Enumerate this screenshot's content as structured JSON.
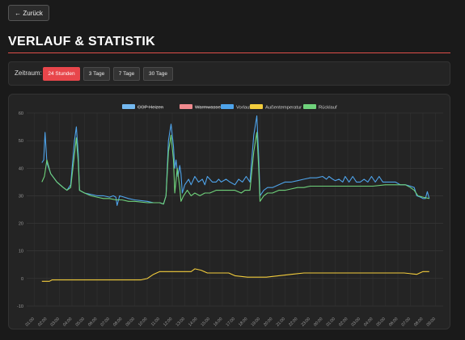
{
  "nav": {
    "back_label": "← Zurück"
  },
  "page": {
    "title": "VERLAUF & STATISTIK"
  },
  "range": {
    "label": "Zeitraum:",
    "options": [
      "24 Stunden",
      "3 Tage",
      "7 Tage",
      "30 Tage"
    ],
    "selected": "24 Stunden"
  },
  "colors": {
    "accent": "#e8464b",
    "cop_heizen": "#74b9f0",
    "warmwasser": "#f08a8e",
    "vorlauf": "#4ea3ea",
    "aussentemperatur": "#f3cd3c",
    "ruecklauf": "#6fd27b"
  },
  "chart_data": {
    "type": "line",
    "title": "",
    "xlabel": "",
    "ylabel": "",
    "ylim": [
      -10,
      60
    ],
    "yticks": [
      -10,
      0,
      10,
      20,
      30,
      40,
      50,
      60
    ],
    "grid": true,
    "legend_position": "top-center",
    "x_tick_labels": [
      "01:00",
      "02:00",
      "03:00",
      "04:00",
      "05:00",
      "06:00",
      "07:00",
      "08:00",
      "09:00",
      "10:00",
      "11:00",
      "12:00",
      "13:00",
      "14:00",
      "15:00",
      "16:00",
      "17:00",
      "18:00",
      "19:00",
      "20:00",
      "21:00",
      "22:00",
      "23:00",
      "00:00",
      "01:00",
      "02:00",
      "03:00",
      "04:00",
      "05:00",
      "06:00",
      "07:00",
      "08:00",
      "09:00"
    ],
    "series": [
      {
        "name": "COP Heizen",
        "hidden": true,
        "values": []
      },
      {
        "name": "Warmwasser",
        "hidden": true,
        "values": []
      },
      {
        "name": "Vorlauf",
        "hidden": false,
        "values": [
          [
            0.6,
            42
          ],
          [
            0.75,
            43
          ],
          [
            0.85,
            53
          ],
          [
            1.0,
            42
          ],
          [
            1.3,
            38
          ],
          [
            1.8,
            35
          ],
          [
            2.3,
            33
          ],
          [
            2.6,
            32
          ],
          [
            2.9,
            34
          ],
          [
            3.2,
            50
          ],
          [
            3.35,
            55
          ],
          [
            3.5,
            45
          ],
          [
            3.6,
            32
          ],
          [
            4.0,
            31
          ],
          [
            4.5,
            30.5
          ],
          [
            5.0,
            30
          ],
          [
            5.5,
            30
          ],
          [
            6.0,
            29.5
          ],
          [
            6.3,
            30
          ],
          [
            6.5,
            29.5
          ],
          [
            6.6,
            26.5
          ],
          [
            6.8,
            30
          ],
          [
            7.5,
            29
          ],
          [
            8.0,
            28.5
          ],
          [
            9.0,
            28
          ],
          [
            9.5,
            27.5
          ],
          [
            10.0,
            27.5
          ],
          [
            10.3,
            27
          ],
          [
            10.5,
            30
          ],
          [
            10.7,
            50
          ],
          [
            10.9,
            56
          ],
          [
            11.1,
            48
          ],
          [
            11.2,
            40
          ],
          [
            11.3,
            43
          ],
          [
            11.45,
            37
          ],
          [
            11.6,
            41
          ],
          [
            11.7,
            38
          ],
          [
            11.8,
            31
          ],
          [
            12.0,
            34
          ],
          [
            12.3,
            36
          ],
          [
            12.5,
            34
          ],
          [
            12.8,
            37
          ],
          [
            13.1,
            35
          ],
          [
            13.4,
            36
          ],
          [
            13.6,
            34
          ],
          [
            13.8,
            37
          ],
          [
            14.2,
            35
          ],
          [
            14.5,
            35
          ],
          [
            14.7,
            36
          ],
          [
            14.9,
            35
          ],
          [
            15.3,
            36
          ],
          [
            15.6,
            35
          ],
          [
            16.0,
            34
          ],
          [
            16.3,
            36
          ],
          [
            16.6,
            35
          ],
          [
            16.9,
            37
          ],
          [
            17.2,
            35
          ],
          [
            17.5,
            52
          ],
          [
            17.75,
            59
          ],
          [
            17.9,
            44
          ],
          [
            18.0,
            30
          ],
          [
            18.3,
            32
          ],
          [
            18.6,
            33
          ],
          [
            19.0,
            33
          ],
          [
            19.5,
            34
          ],
          [
            20.0,
            35
          ],
          [
            20.5,
            35
          ],
          [
            21.0,
            35.5
          ],
          [
            21.5,
            36
          ],
          [
            22.0,
            36.5
          ],
          [
            22.5,
            36.5
          ],
          [
            23.0,
            37
          ],
          [
            23.3,
            36
          ],
          [
            23.5,
            37
          ],
          [
            23.8,
            36
          ],
          [
            24.0,
            35.5
          ],
          [
            24.3,
            36
          ],
          [
            24.6,
            35
          ],
          [
            24.8,
            37
          ],
          [
            25.1,
            35
          ],
          [
            25.4,
            37
          ],
          [
            25.7,
            35
          ],
          [
            26.0,
            35
          ],
          [
            26.3,
            36
          ],
          [
            26.6,
            35
          ],
          [
            26.9,
            37
          ],
          [
            27.2,
            35
          ],
          [
            27.5,
            37
          ],
          [
            27.8,
            35
          ],
          [
            28.1,
            35
          ],
          [
            28.4,
            35
          ],
          [
            28.8,
            35
          ],
          [
            29.2,
            34
          ],
          [
            29.6,
            34
          ],
          [
            30.0,
            33.5
          ],
          [
            30.3,
            33
          ],
          [
            30.5,
            30
          ],
          [
            30.8,
            29.5
          ],
          [
            31.0,
            29
          ],
          [
            31.2,
            29
          ],
          [
            31.35,
            31.5
          ],
          [
            31.5,
            29
          ]
        ]
      },
      {
        "name": "Außentemperatur",
        "hidden": false,
        "values": [
          [
            0.6,
            -1
          ],
          [
            1.2,
            -1
          ],
          [
            1.4,
            -0.5
          ],
          [
            3.0,
            -0.5
          ],
          [
            8.5,
            -0.5
          ],
          [
            9.0,
            0
          ],
          [
            9.5,
            1.5
          ],
          [
            10.0,
            2.5
          ],
          [
            11.0,
            2.5
          ],
          [
            12.0,
            2.5
          ],
          [
            12.5,
            2.5
          ],
          [
            12.8,
            3.5
          ],
          [
            13.3,
            3
          ],
          [
            13.8,
            2
          ],
          [
            14.5,
            2
          ],
          [
            15.5,
            2
          ],
          [
            16.0,
            1
          ],
          [
            17.0,
            0.5
          ],
          [
            17.5,
            0.5
          ],
          [
            18.5,
            0.5
          ],
          [
            19.5,
            1
          ],
          [
            20.5,
            1.5
          ],
          [
            21.5,
            2
          ],
          [
            22.5,
            2
          ],
          [
            23.5,
            2
          ],
          [
            24.5,
            2
          ],
          [
            25.5,
            2
          ],
          [
            26.5,
            2
          ],
          [
            27.5,
            2
          ],
          [
            28.5,
            2
          ],
          [
            29.5,
            2
          ],
          [
            30.5,
            1.5
          ],
          [
            31.0,
            2.5
          ],
          [
            31.5,
            2.5
          ]
        ]
      },
      {
        "name": "Rücklauf",
        "hidden": false,
        "values": [
          [
            0.6,
            35
          ],
          [
            0.8,
            37
          ],
          [
            1.0,
            43
          ],
          [
            1.3,
            38
          ],
          [
            1.8,
            35
          ],
          [
            2.3,
            33
          ],
          [
            2.6,
            32
          ],
          [
            2.9,
            33
          ],
          [
            3.2,
            45
          ],
          [
            3.35,
            51
          ],
          [
            3.5,
            42
          ],
          [
            3.6,
            32
          ],
          [
            4.0,
            31
          ],
          [
            4.5,
            30
          ],
          [
            5.0,
            29.5
          ],
          [
            5.5,
            29
          ],
          [
            6.0,
            29
          ],
          [
            6.5,
            28.5
          ],
          [
            7.0,
            28.5
          ],
          [
            7.5,
            28
          ],
          [
            8.0,
            28
          ],
          [
            9.0,
            27.5
          ],
          [
            10.0,
            27.5
          ],
          [
            10.3,
            27
          ],
          [
            10.5,
            30
          ],
          [
            10.7,
            46
          ],
          [
            10.9,
            52
          ],
          [
            11.1,
            43
          ],
          [
            11.2,
            31
          ],
          [
            11.4,
            40
          ],
          [
            11.6,
            33
          ],
          [
            11.7,
            28
          ],
          [
            11.9,
            30
          ],
          [
            12.2,
            32
          ],
          [
            12.5,
            30
          ],
          [
            12.8,
            31
          ],
          [
            13.2,
            30
          ],
          [
            13.6,
            31
          ],
          [
            14.0,
            31
          ],
          [
            14.5,
            32
          ],
          [
            15.0,
            32
          ],
          [
            15.5,
            32
          ],
          [
            16.0,
            32
          ],
          [
            16.5,
            31
          ],
          [
            16.8,
            32
          ],
          [
            17.2,
            32
          ],
          [
            17.5,
            46
          ],
          [
            17.75,
            53
          ],
          [
            17.9,
            40
          ],
          [
            18.0,
            28
          ],
          [
            18.3,
            30
          ],
          [
            18.6,
            31
          ],
          [
            19.0,
            31
          ],
          [
            19.5,
            32
          ],
          [
            20.0,
            32
          ],
          [
            20.5,
            32.5
          ],
          [
            21.0,
            33
          ],
          [
            21.5,
            33
          ],
          [
            22.0,
            33.5
          ],
          [
            22.5,
            33.5
          ],
          [
            23.0,
            33.5
          ],
          [
            24.0,
            33.5
          ],
          [
            25.0,
            33.5
          ],
          [
            26.0,
            33.5
          ],
          [
            27.0,
            33.5
          ],
          [
            28.0,
            34
          ],
          [
            29.0,
            34
          ],
          [
            29.6,
            34
          ],
          [
            30.0,
            33
          ],
          [
            30.3,
            32
          ],
          [
            30.6,
            30
          ],
          [
            31.0,
            29.5
          ],
          [
            31.5,
            29
          ]
        ]
      }
    ]
  }
}
